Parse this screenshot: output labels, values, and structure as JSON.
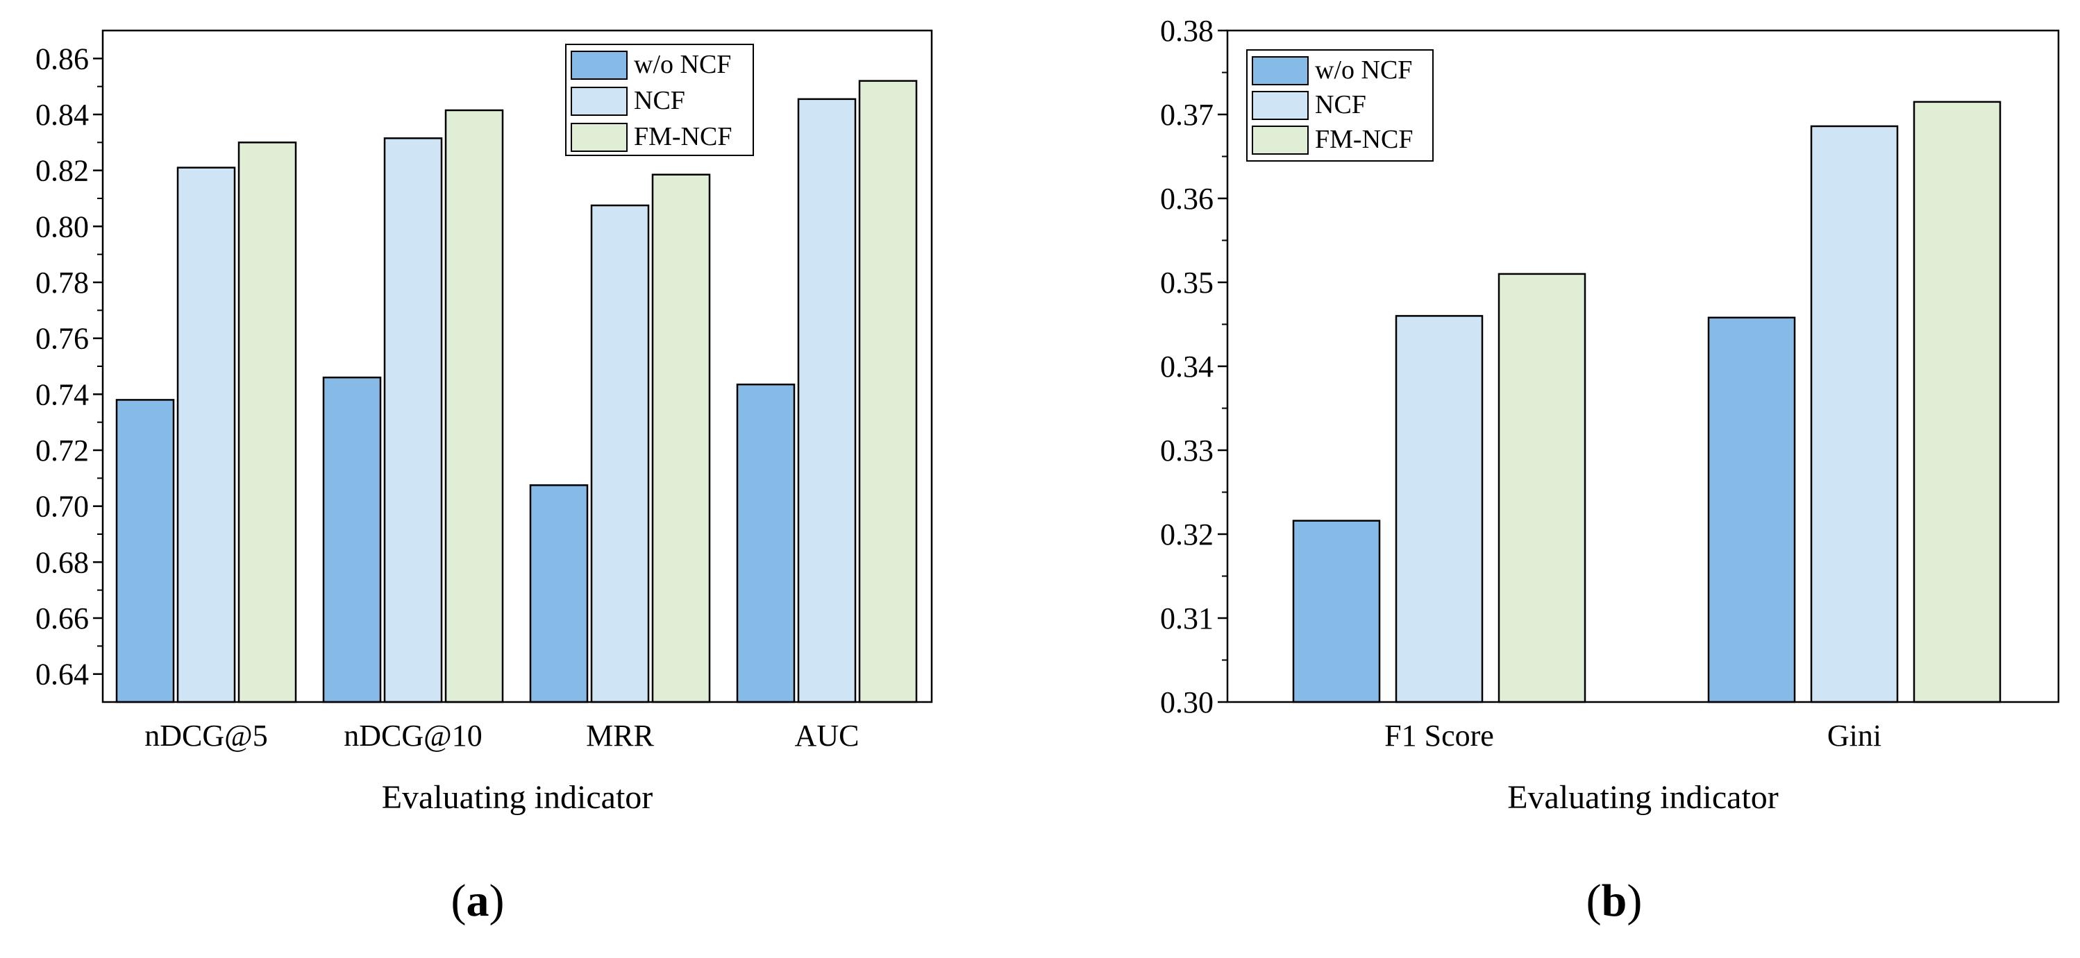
{
  "chart_data": [
    {
      "type": "bar",
      "panel_label": "a",
      "xlabel": "Evaluating indicator",
      "ylabel": "",
      "ylim": [
        0.63,
        0.87
      ],
      "yticks": [
        "0.64",
        "0.66",
        "0.68",
        "0.70",
        "0.72",
        "0.74",
        "0.76",
        "0.78",
        "0.80",
        "0.82",
        "0.84",
        "0.86"
      ],
      "categories": [
        "nDCG@5",
        "nDCG@10",
        "MRR",
        "AUC"
      ],
      "legend_position": "top-right",
      "series": [
        {
          "name": "w/o NCF",
          "color": "#86bbe8",
          "values": [
            0.738,
            0.746,
            0.7075,
            0.7435
          ]
        },
        {
          "name": "NCF",
          "color": "#cfe4f5",
          "values": [
            0.821,
            0.8315,
            0.8075,
            0.8455
          ]
        },
        {
          "name": "FM-NCF",
          "color": "#dfeed5",
          "values": [
            0.83,
            0.8415,
            0.8185,
            0.852
          ]
        }
      ]
    },
    {
      "type": "bar",
      "panel_label": "b",
      "xlabel": "Evaluating indicator",
      "ylabel": "",
      "ylim": [
        0.3,
        0.38
      ],
      "yticks": [
        "0.30",
        "0.31",
        "0.32",
        "0.33",
        "0.34",
        "0.35",
        "0.36",
        "0.37",
        "0.38"
      ],
      "categories": [
        "F1 Score",
        "Gini"
      ],
      "legend_position": "top-left",
      "series": [
        {
          "name": "w/o NCF",
          "color": "#86bbe8",
          "values": [
            0.3216,
            0.3458
          ]
        },
        {
          "name": "NCF",
          "color": "#cfe4f5",
          "values": [
            0.346,
            0.3686
          ]
        },
        {
          "name": "FM-NCF",
          "color": "#dfeed5",
          "values": [
            0.351,
            0.3715
          ]
        }
      ]
    }
  ]
}
